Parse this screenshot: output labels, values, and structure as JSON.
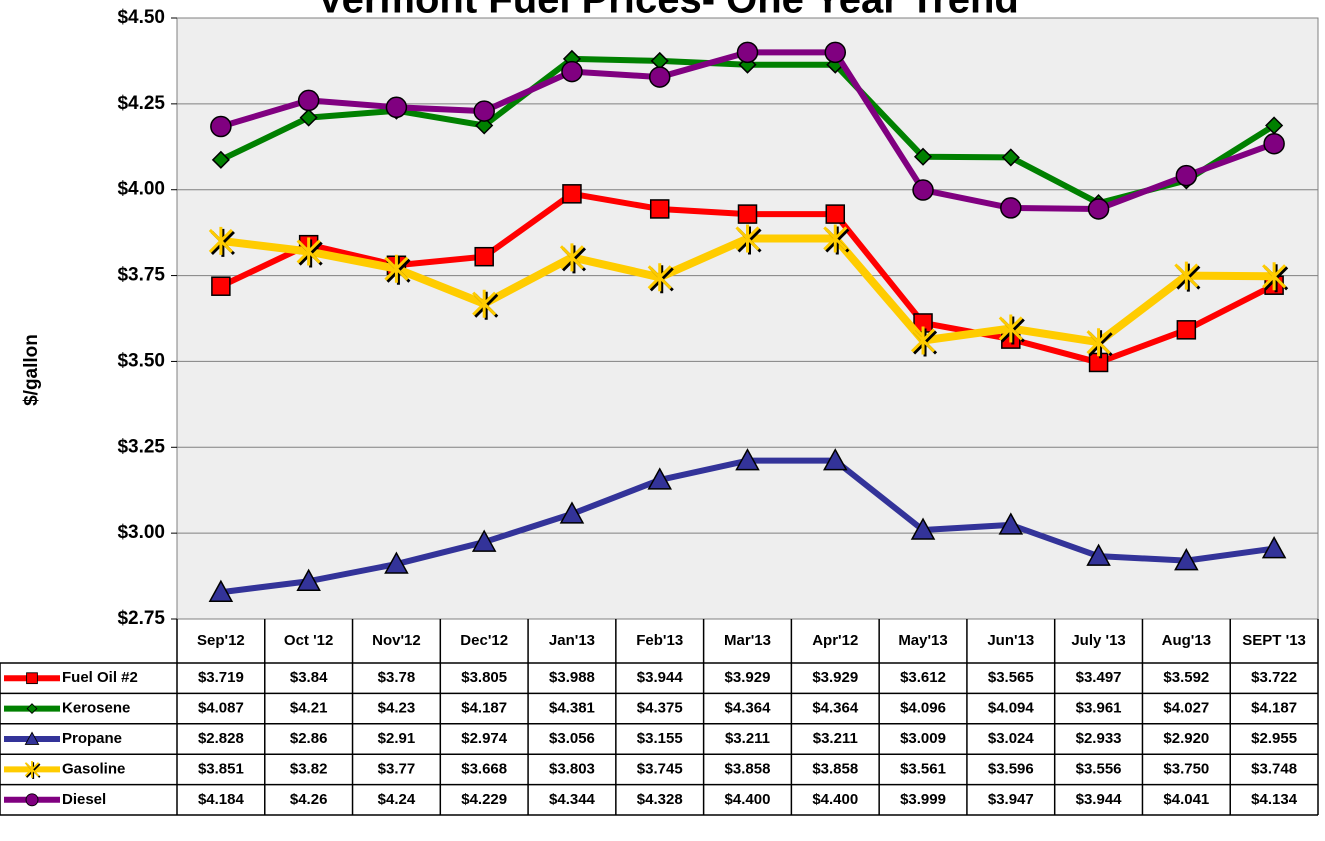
{
  "chart_data": {
    "type": "line",
    "title": "Vermont Fuel Prices- One Year Trend",
    "y_label": "$/gallon",
    "categories": [
      "Sep'12",
      "Oct '12",
      "Nov'12",
      "Dec'12",
      "Jan'13",
      "Feb'13",
      "Mar'13",
      "Apr'12",
      "May'13",
      "Jun'13",
      "July '13",
      "Aug'13",
      "SEPT '13"
    ],
    "ylim": [
      2.75,
      4.5
    ],
    "yticks": [
      {
        "value": 2.75,
        "label": "$2.75"
      },
      {
        "value": 3.0,
        "label": "$3.00"
      },
      {
        "value": 3.25,
        "label": "$3.25"
      },
      {
        "value": 3.5,
        "label": "$3.50"
      },
      {
        "value": 3.75,
        "label": "$3.75"
      },
      {
        "value": 4.0,
        "label": "$4.00"
      },
      {
        "value": 4.25,
        "label": "$4.25"
      },
      {
        "value": 4.5,
        "label": "$4.50"
      }
    ],
    "grid": true,
    "series": [
      {
        "name": "Fuel Oil #2",
        "color": "#ff0000",
        "marker": "square",
        "values": [
          3.719,
          3.84,
          3.78,
          3.805,
          3.988,
          3.944,
          3.929,
          3.929,
          3.612,
          3.565,
          3.497,
          3.592,
          3.722
        ],
        "value_labels": [
          "$3.719",
          "$3.84",
          "$3.78",
          "$3.805",
          "$3.988",
          "$3.944",
          "$3.929",
          "$3.929",
          "$3.612",
          "$3.565",
          "$3.497",
          "$3.592",
          "$3.722"
        ]
      },
      {
        "name": "Kerosene",
        "color": "#008000",
        "marker": "diamond",
        "values": [
          4.087,
          4.21,
          4.23,
          4.187,
          4.381,
          4.375,
          4.364,
          4.364,
          4.096,
          4.094,
          3.961,
          4.027,
          4.187
        ],
        "value_labels": [
          "$4.087",
          "$4.21",
          "$4.23",
          "$4.187",
          "$4.381",
          "$4.375",
          "$4.364",
          "$4.364",
          "$4.096",
          "$4.094",
          "$3.961",
          "$4.027",
          "$4.187"
        ]
      },
      {
        "name": "Propane",
        "color": "#333399",
        "marker": "triangle",
        "values": [
          2.828,
          2.86,
          2.91,
          2.974,
          3.056,
          3.155,
          3.211,
          3.211,
          3.009,
          3.024,
          2.933,
          2.92,
          2.955
        ],
        "value_labels": [
          "$2.828",
          "$2.86",
          "$2.91",
          "$2.974",
          "$3.056",
          "$3.155",
          "$3.211",
          "$3.211",
          "$3.009",
          "$3.024",
          "$2.933",
          "$2.920",
          "$2.955"
        ]
      },
      {
        "name": "Gasoline",
        "color": "#ffcc00",
        "marker": "star",
        "values": [
          3.851,
          3.82,
          3.77,
          3.668,
          3.803,
          3.745,
          3.858,
          3.858,
          3.561,
          3.596,
          3.556,
          3.75,
          3.748
        ],
        "value_labels": [
          "$3.851",
          "$3.82",
          "$3.77",
          "$3.668",
          "$3.803",
          "$3.745",
          "$3.858",
          "$3.858",
          "$3.561",
          "$3.596",
          "$3.556",
          "$3.750",
          "$3.748"
        ]
      },
      {
        "name": "Diesel",
        "color": "#800080",
        "marker": "circle",
        "values": [
          4.184,
          4.26,
          4.24,
          4.229,
          4.344,
          4.328,
          4.4,
          4.4,
          3.999,
          3.947,
          3.944,
          4.041,
          4.134
        ],
        "value_labels": [
          "$4.184",
          "$4.26",
          "$4.24",
          "$4.229",
          "$4.344",
          "$4.328",
          "$4.400",
          "$4.400",
          "$3.999",
          "$3.947",
          "$3.944",
          "$4.041",
          "$4.134"
        ]
      }
    ]
  }
}
